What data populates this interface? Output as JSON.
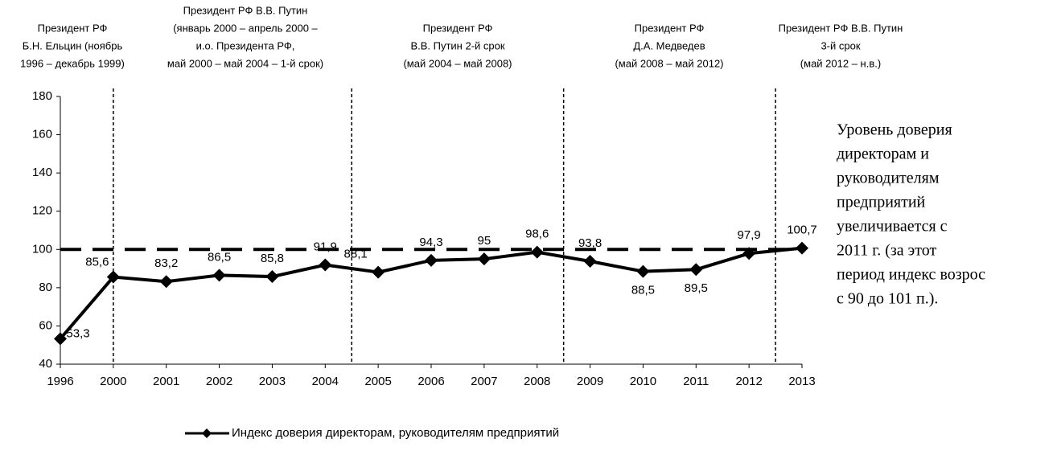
{
  "chart_data": {
    "type": "line",
    "categories": [
      "1996",
      "2000",
      "2001",
      "2002",
      "2003",
      "2004",
      "2005",
      "2006",
      "2007",
      "2008",
      "2009",
      "2010",
      "2011",
      "2012",
      "2013"
    ],
    "series": [
      {
        "name": "Индекс доверия директорам, руководителям предприятий",
        "color": "#000000",
        "values": [
          53.3,
          85.6,
          83.2,
          86.5,
          85.8,
          91.9,
          88.1,
          94.3,
          95,
          98.6,
          93.8,
          88.5,
          89.5,
          97.9,
          100.7
        ],
        "value_labels": [
          "53,3",
          "85,6",
          "83,2",
          "86,5",
          "85,8",
          "91,9",
          "88,1",
          "94,3",
          "95",
          "98,6",
          "93,8",
          "88,5",
          "89,5",
          "97,9",
          "100,7"
        ]
      }
    ],
    "ylim": [
      40,
      180
    ],
    "yticks": [
      40,
      60,
      80,
      100,
      120,
      140,
      160,
      180
    ],
    "reference_line": 100,
    "annotations": [
      [
        "Президент РФ",
        "Б.Н. Ельцин (ноябрь",
        "1996 – декабрь 1999)"
      ],
      [
        "Президент РФ В.В. Путин",
        "(январь 2000 – апрель 2000 –",
        "и.о. Президента РФ,",
        "май 2000 – май 2004 – 1-й срок)"
      ],
      [
        "Президент РФ",
        "В.В. Путин 2-й срок",
        "(май 2004 –  май 2008)"
      ],
      [
        "Президент РФ",
        "Д.А. Медведев",
        "(май 2008 –  май 2012)"
      ],
      [
        "Президент РФ В.В. Путин",
        "3-й срок",
        "(май 2012 – н.в.)"
      ]
    ],
    "side_text": [
      "Уровень доверия",
      "директорам и",
      "руководителям",
      "предприятий",
      "увеличивается с",
      "2011 г. (за этот",
      "период индекс возрос",
      "с 90 до 101 п.)."
    ]
  }
}
